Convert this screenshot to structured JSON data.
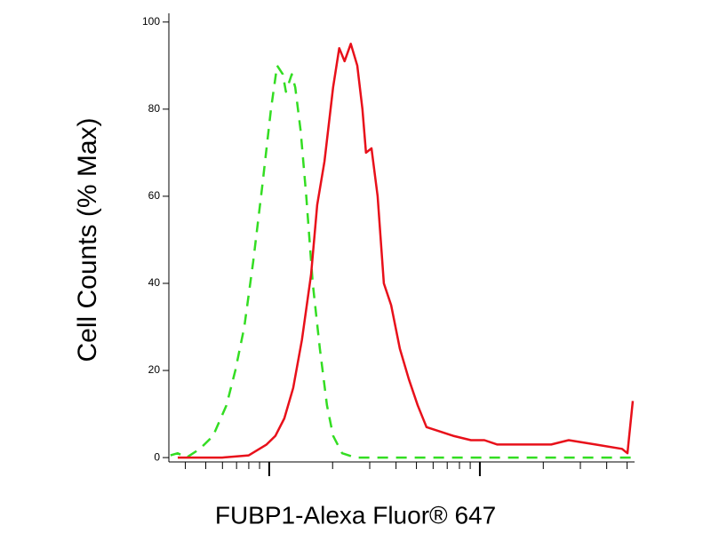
{
  "chart_data": {
    "type": "line",
    "x_label": "FUBP1-Alexa Fluor® 647",
    "y_label": "Cell Counts (% Max)",
    "xscale": "log",
    "xlim": [
      334,
      53200
    ],
    "xticks": [
      400,
      500,
      600,
      700,
      800,
      900,
      1000,
      2000,
      3000,
      4000,
      5000,
      6000,
      7000,
      8000,
      9000,
      10000,
      20000,
      30000,
      40000,
      50000
    ],
    "ylim": [
      -1,
      102
    ],
    "yticks": [
      0,
      20,
      40,
      60,
      80,
      100
    ],
    "series": [
      {
        "color": "#33dd22",
        "dashed": true,
        "x": [
          340,
          368,
          405,
          469,
          542,
          627,
          691,
          762,
          840,
          925,
          1020,
          1090,
          1160,
          1200,
          1280,
          1330,
          1410,
          1500,
          1610,
          1740,
          1880,
          2010,
          2220,
          2570,
          4170,
          11000,
          29100,
          52200
        ],
        "values": [
          0.5,
          1,
          0,
          2,
          5,
          12,
          20,
          30,
          45,
          62,
          80,
          90,
          88,
          84,
          88,
          85,
          75,
          60,
          40,
          25,
          12,
          5,
          1,
          0,
          0,
          0,
          0,
          0
        ]
      },
      {
        "color": "#e8101a",
        "dashed": false,
        "x": [
          368,
          598,
          800,
          971,
          1070,
          1180,
          1300,
          1430,
          1580,
          1690,
          1830,
          2010,
          2150,
          2280,
          2440,
          2620,
          2770,
          2880,
          3060,
          3270,
          3500,
          3790,
          4170,
          4600,
          5070,
          5580,
          6460,
          7470,
          9070,
          10500,
          12100,
          16300,
          21800,
          26400,
          35400,
          47300,
          50200,
          52200,
          53200
        ],
        "values": [
          0,
          0,
          0.5,
          3,
          5,
          9,
          16,
          27,
          42,
          58,
          68,
          85,
          94,
          91,
          95,
          90,
          80,
          70,
          71,
          60,
          40,
          35,
          25,
          18,
          12,
          7,
          6,
          5,
          4,
          4,
          3,
          3,
          3,
          4,
          3,
          2,
          1,
          9,
          13
        ]
      }
    ]
  }
}
